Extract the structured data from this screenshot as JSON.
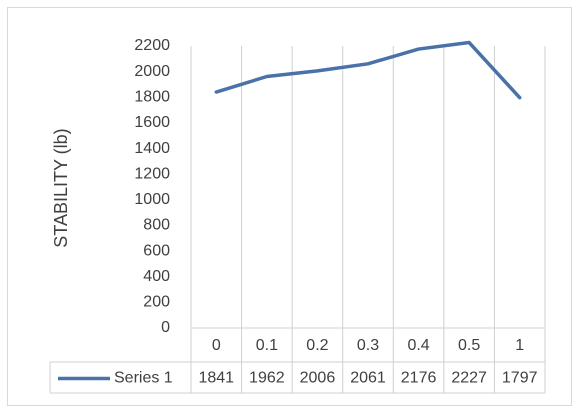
{
  "chart_data": {
    "type": "line",
    "y_label": "STABILITY (lb)",
    "categories": [
      "0",
      "0.1",
      "0.2",
      "0.3",
      "0.4",
      "0.5",
      "1"
    ],
    "series": [
      {
        "name": "Series 1",
        "color": "#4a72a9",
        "values": [
          1841,
          1962,
          2006,
          2061,
          2176,
          2227,
          1797
        ]
      }
    ],
    "ylim": [
      0,
      2200
    ],
    "yticks": [
      0,
      200,
      400,
      600,
      800,
      1000,
      1200,
      1400,
      1600,
      1800,
      2000,
      2200
    ],
    "data_table": true
  }
}
